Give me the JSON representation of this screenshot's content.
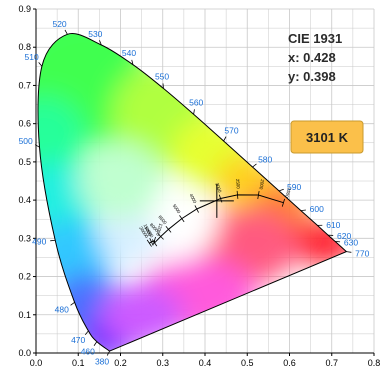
{
  "chart_data": {
    "type": "scatter",
    "title": "CIE 1931",
    "xlim": [
      0,
      0.8
    ],
    "ylim": [
      0,
      0.9
    ],
    "grid": true,
    "x_ticks": [
      "0.0",
      "0.1",
      "0.2",
      "0.3",
      "0.4",
      "0.5",
      "0.6",
      "0.7",
      "0.8"
    ],
    "y_ticks": [
      "0.0",
      "0.1",
      "0.2",
      "0.3",
      "0.4",
      "0.5",
      "0.6",
      "0.7",
      "0.8",
      "0.9"
    ],
    "spectral_locus": [
      {
        "nm": 380,
        "x": 0.1741,
        "y": 0.005
      },
      {
        "nm": 460,
        "x": 0.144,
        "y": 0.0297
      },
      {
        "nm": 470,
        "x": 0.1241,
        "y": 0.0578
      },
      {
        "nm": 480,
        "x": 0.0913,
        "y": 0.1327
      },
      {
        "nm": 490,
        "x": 0.0454,
        "y": 0.295
      },
      {
        "nm": 500,
        "x": 0.0082,
        "y": 0.5384
      },
      {
        "nm": 510,
        "x": 0.0139,
        "y": 0.7502
      },
      {
        "nm": 520,
        "x": 0.0743,
        "y": 0.8338
      },
      {
        "nm": 530,
        "x": 0.1547,
        "y": 0.8059
      },
      {
        "nm": 540,
        "x": 0.2296,
        "y": 0.7543
      },
      {
        "nm": 550,
        "x": 0.3016,
        "y": 0.6923
      },
      {
        "nm": 560,
        "x": 0.3731,
        "y": 0.6245
      },
      {
        "nm": 570,
        "x": 0.4441,
        "y": 0.5547
      },
      {
        "nm": 580,
        "x": 0.5125,
        "y": 0.4866
      },
      {
        "nm": 590,
        "x": 0.5752,
        "y": 0.4242
      },
      {
        "nm": 600,
        "x": 0.627,
        "y": 0.3725
      },
      {
        "nm": 610,
        "x": 0.6658,
        "y": 0.334
      },
      {
        "nm": 620,
        "x": 0.6915,
        "y": 0.3083
      },
      {
        "nm": 630,
        "x": 0.7079,
        "y": 0.292
      },
      {
        "nm": 770,
        "x": 0.7347,
        "y": 0.2653
      }
    ],
    "wavelength_labels": [
      {
        "text": "380",
        "nm": 380
      },
      {
        "text": "460",
        "nm": 460
      },
      {
        "text": "470",
        "nm": 470
      },
      {
        "text": "480",
        "nm": 480
      },
      {
        "text": "490",
        "nm": 490
      },
      {
        "text": "500",
        "nm": 500
      },
      {
        "text": "510",
        "nm": 510
      },
      {
        "text": "520",
        "nm": 520
      },
      {
        "text": "530",
        "nm": 530
      },
      {
        "text": "540",
        "nm": 540
      },
      {
        "text": "550",
        "nm": 550
      },
      {
        "text": "560",
        "nm": 560
      },
      {
        "text": "570",
        "nm": 570
      },
      {
        "text": "580",
        "nm": 580
      },
      {
        "text": "590",
        "nm": 590
      },
      {
        "text": "600",
        "nm": 600
      },
      {
        "text": "610",
        "nm": 610
      },
      {
        "text": "620",
        "nm": 620
      },
      {
        "text": "630",
        "nm": 630
      },
      {
        "text": "770",
        "nm": 770
      }
    ],
    "planckian_locus": [
      {
        "K": 20000,
        "x": 0.2683,
        "y": 0.2872,
        "label": "20000"
      },
      {
        "K": 15000,
        "x": 0.2732,
        "y": 0.2908,
        "label": "15000"
      },
      {
        "K": 12000,
        "x": 0.2802,
        "y": 0.2934,
        "label": "12000"
      },
      {
        "K": 10000,
        "x": 0.2806,
        "y": 0.2883,
        "label": "10000"
      },
      {
        "K": 8000,
        "x": 0.2952,
        "y": 0.3048,
        "label": "8000"
      },
      {
        "K": 6500,
        "x": 0.3135,
        "y": 0.3237,
        "label": "6500"
      },
      {
        "K": 5000,
        "x": 0.3451,
        "y": 0.3516,
        "label": "5000"
      },
      {
        "K": 4000,
        "x": 0.3805,
        "y": 0.3768,
        "label": "4000"
      },
      {
        "K": 3000,
        "x": 0.4369,
        "y": 0.4041,
        "label": "3000"
      },
      {
        "K": 2500,
        "x": 0.4769,
        "y": 0.4137,
        "label": "2500"
      },
      {
        "K": 2000,
        "x": 0.5265,
        "y": 0.4133,
        "label": "2000"
      },
      {
        "K": 1500,
        "x": 0.5857,
        "y": 0.3931,
        "label": "1500"
      }
    ],
    "measured_point": {
      "x": 0.428,
      "y": 0.398
    },
    "info": {
      "title": "CIE 1931",
      "x_text": "x: 0.428",
      "y_text": "y: 0.398"
    },
    "cct_badge": {
      "text": "3101 K",
      "fill": "#fbc04a",
      "stroke": "#c99a2e"
    },
    "colors": {
      "grid": "#c8c8c8",
      "axis": "#000000",
      "wavelength_label": "#1a6fd6"
    }
  }
}
